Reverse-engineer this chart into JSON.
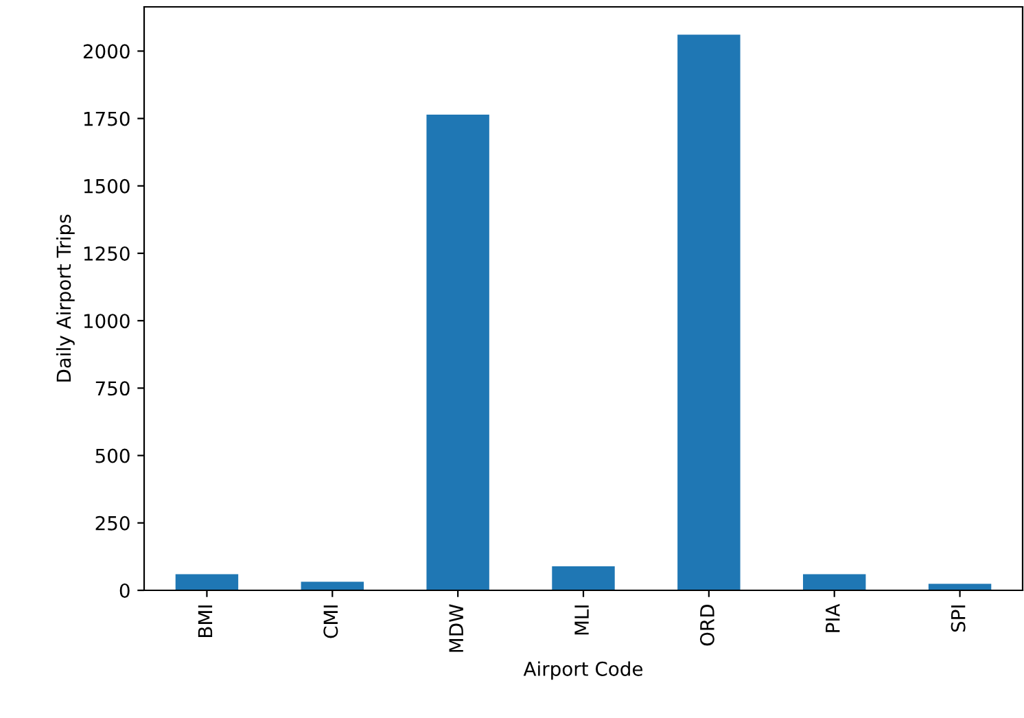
{
  "chart_data": {
    "type": "bar",
    "xlabel": "Airport Code",
    "ylabel": "Daily Airport Trips",
    "categories": [
      "BMI",
      "CMI",
      "MDW",
      "MLI",
      "ORD",
      "PIA",
      "SPI"
    ],
    "values": [
      60,
      32,
      1764,
      89,
      2061,
      60,
      24
    ],
    "color": "#1f77b4",
    "ylim": [
      0,
      2164
    ],
    "yticks": [
      0,
      250,
      500,
      750,
      1000,
      1250,
      1500,
      1750,
      2000
    ],
    "grid": false,
    "legend": false
  }
}
